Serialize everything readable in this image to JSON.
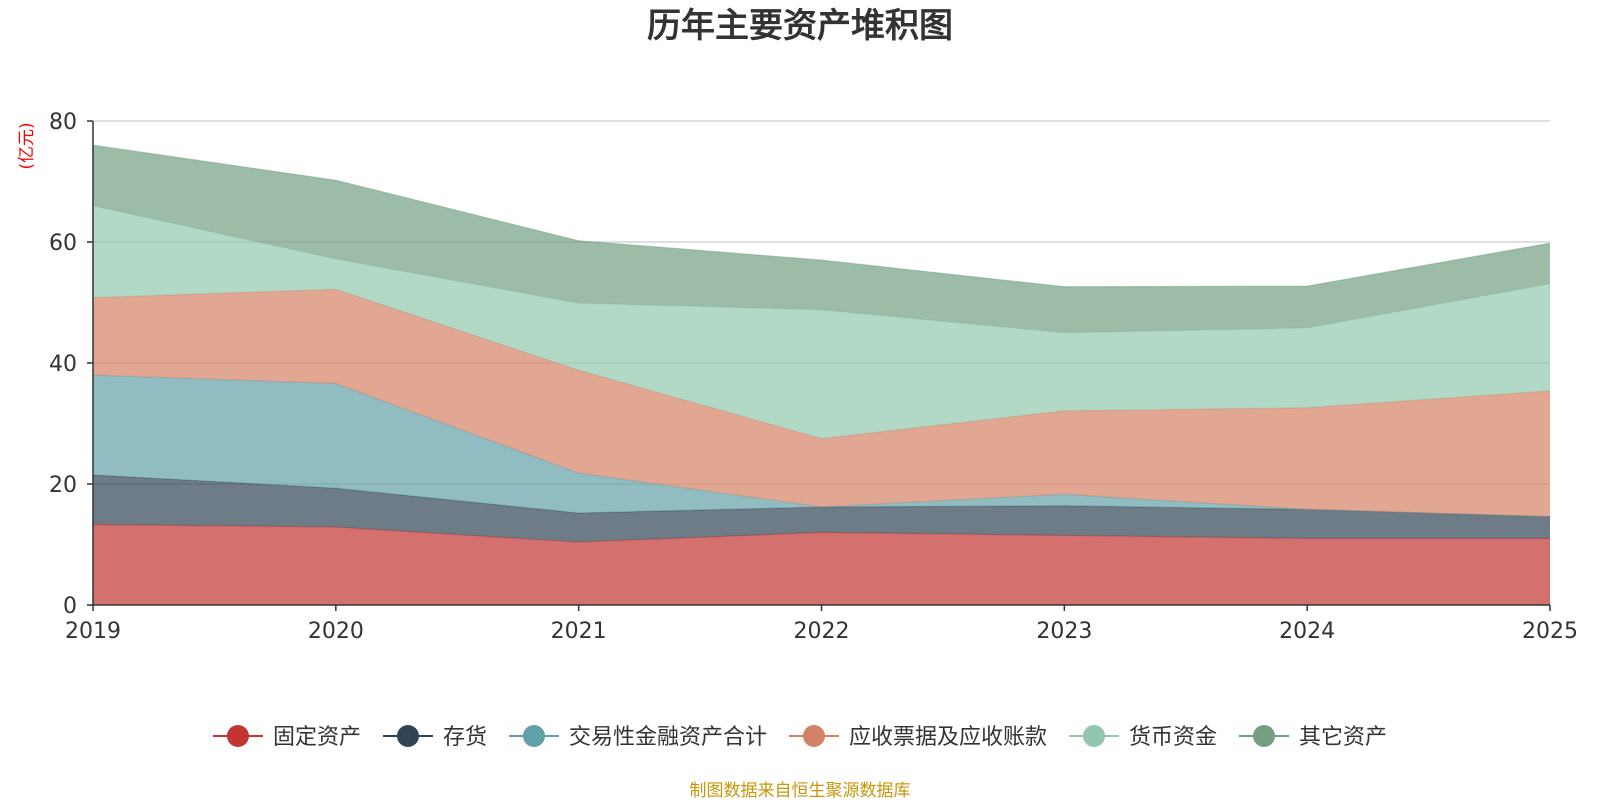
{
  "chart_data": {
    "type": "area",
    "stacked": true,
    "title": "历年主要资产堆积图",
    "ylabel": "(亿元)",
    "xlabel": "",
    "ylim": [
      0,
      80
    ],
    "yticks": [
      0,
      20,
      40,
      60,
      80
    ],
    "categories": [
      "2019",
      "2020",
      "2021",
      "2022",
      "2023",
      "2024",
      "2025"
    ],
    "grid": true,
    "legend_position": "bottom-center",
    "series": [
      {
        "name": "固定资产",
        "color": "#c23531",
        "values": [
          13.3,
          12.9,
          10.4,
          12.0,
          11.5,
          11.0,
          11.0
        ]
      },
      {
        "name": "存货",
        "color": "#2f4554",
        "values": [
          8.2,
          6.4,
          4.8,
          4.2,
          4.9,
          4.8,
          3.6
        ]
      },
      {
        "name": "交易性金融资产合计",
        "color": "#61a0a8",
        "values": [
          16.5,
          17.3,
          6.6,
          0.0,
          1.9,
          0.0,
          0.0
        ]
      },
      {
        "name": "应收票据及应收账款",
        "color": "#d48265",
        "values": [
          12.8,
          15.6,
          17.0,
          11.3,
          13.8,
          16.8,
          20.8
        ]
      },
      {
        "name": "货币资金",
        "color": "#91c7ae",
        "values": [
          15.2,
          5.0,
          11.1,
          21.3,
          12.9,
          13.2,
          17.7
        ]
      },
      {
        "name": "其它资产",
        "color": "#749f83",
        "values": [
          10.0,
          13.0,
          10.3,
          8.2,
          7.6,
          6.9,
          6.7
        ]
      }
    ]
  },
  "footer": {
    "source_text": "制图数据来自恒生聚源数据库"
  }
}
